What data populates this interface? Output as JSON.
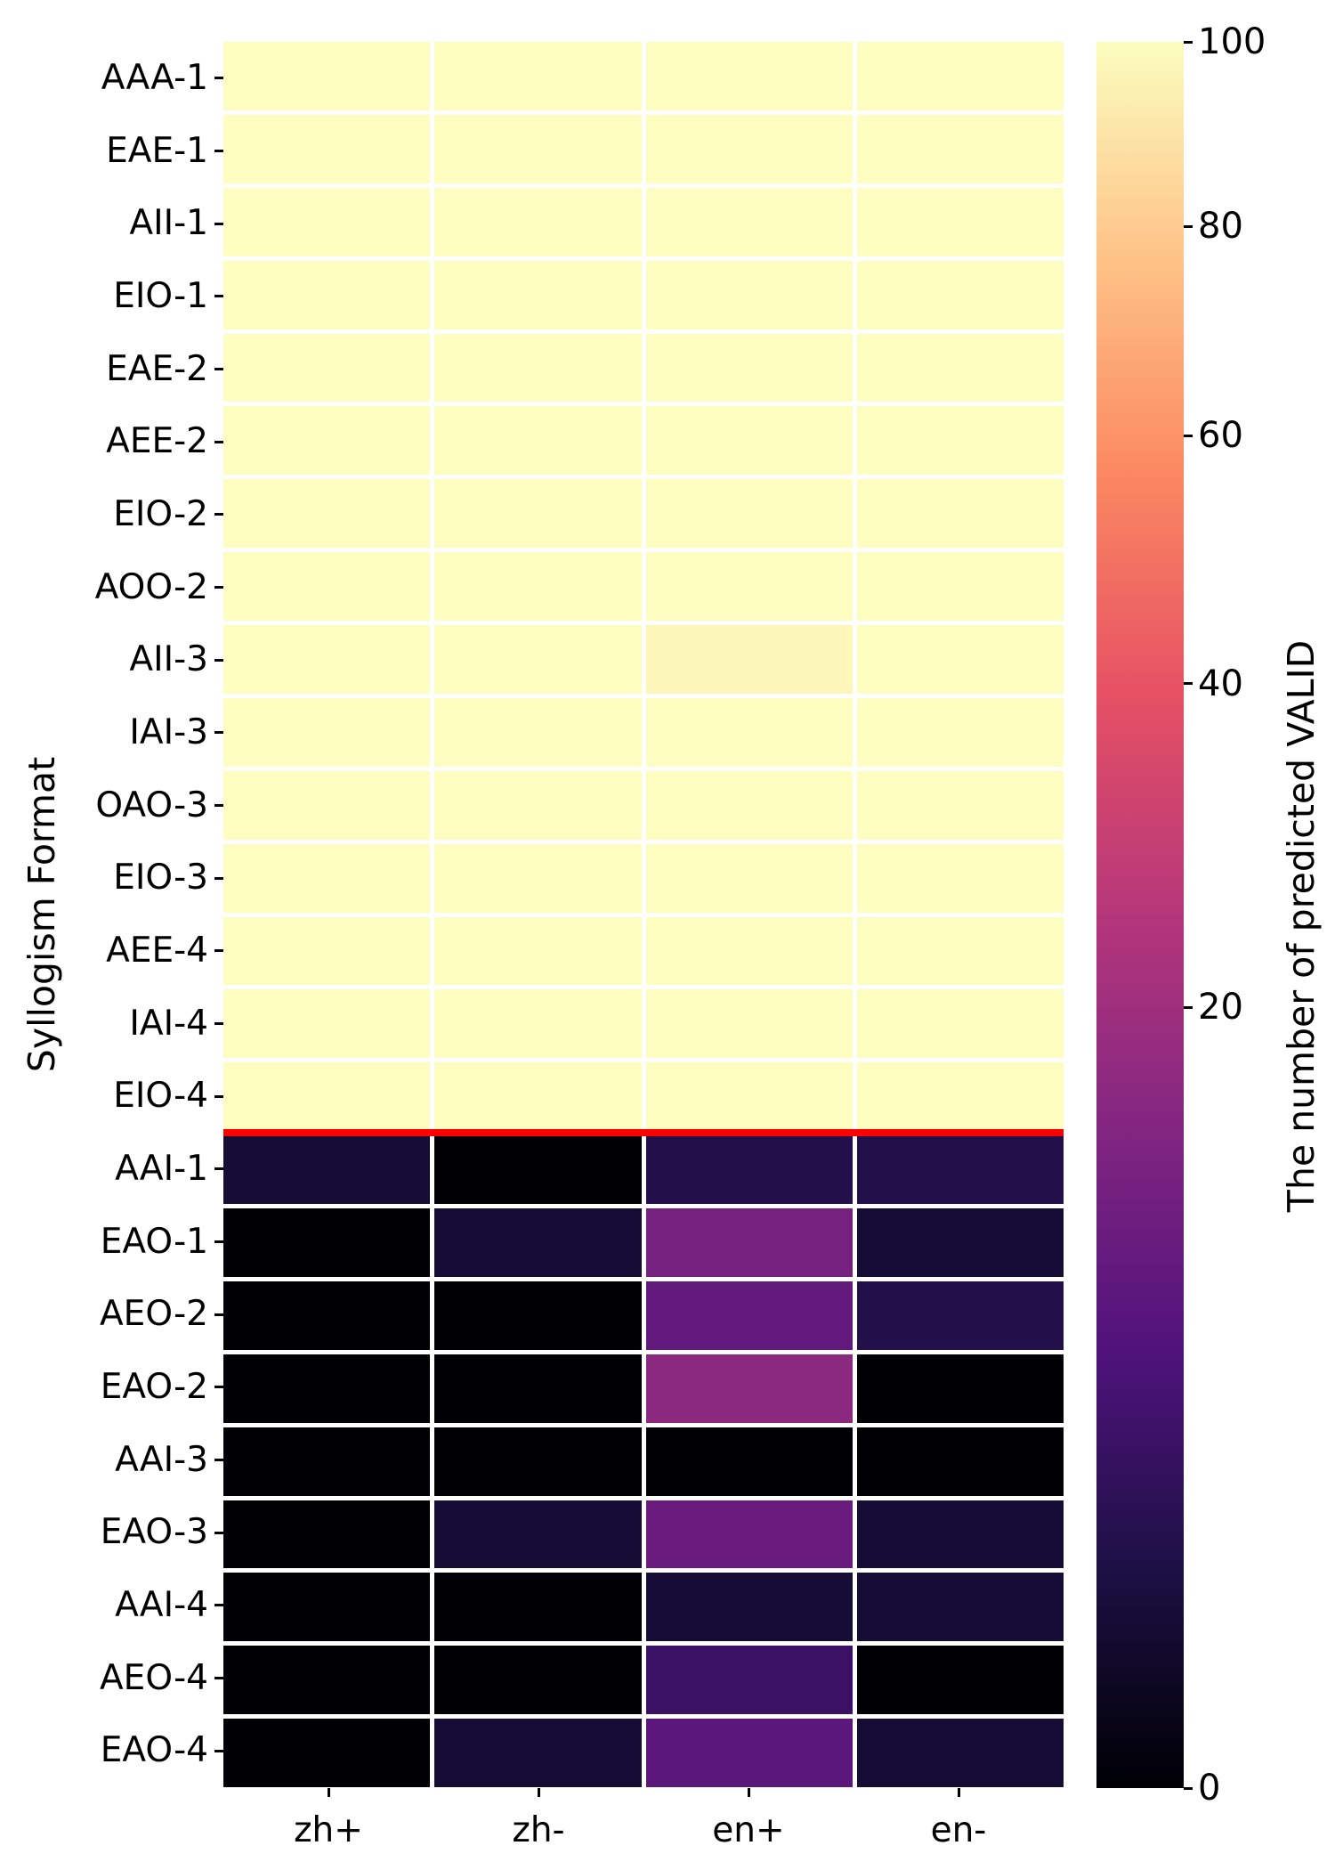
{
  "chart_data": {
    "type": "heatmap",
    "title": "",
    "xlabel": "",
    "ylabel": "Syllogism Format",
    "x_categories": [
      "zh+",
      "zh-",
      "en+",
      "en-"
    ],
    "y_categories": [
      "AAA-1",
      "EAE-1",
      "AII-1",
      "EIO-1",
      "EAE-2",
      "AEE-2",
      "EIO-2",
      "AOO-2",
      "AII-3",
      "IAI-3",
      "OAO-3",
      "EIO-3",
      "AEE-4",
      "IAI-4",
      "EIO-4",
      "AAI-1",
      "EAO-1",
      "AEO-2",
      "EAO-2",
      "AAI-3",
      "EAO-3",
      "AAI-4",
      "AEO-4",
      "EAO-4"
    ],
    "values": [
      [
        100,
        100,
        100,
        100
      ],
      [
        100,
        100,
        100,
        100
      ],
      [
        100,
        100,
        100,
        100
      ],
      [
        100,
        100,
        100,
        100
      ],
      [
        100,
        100,
        100,
        100
      ],
      [
        100,
        100,
        100,
        100
      ],
      [
        100,
        100,
        100,
        100
      ],
      [
        100,
        100,
        100,
        100
      ],
      [
        100,
        100,
        97,
        100
      ],
      [
        100,
        100,
        100,
        100
      ],
      [
        100,
        100,
        100,
        100
      ],
      [
        100,
        100,
        100,
        100
      ],
      [
        100,
        100,
        100,
        100
      ],
      [
        100,
        100,
        100,
        100
      ],
      [
        100,
        100,
        100,
        100
      ],
      [
        1,
        0,
        2,
        2
      ],
      [
        0,
        1,
        12,
        1
      ],
      [
        0,
        0,
        9,
        2
      ],
      [
        0,
        0,
        16,
        0
      ],
      [
        0,
        0,
        0,
        0
      ],
      [
        0,
        1,
        10,
        1
      ],
      [
        0,
        0,
        1,
        1
      ],
      [
        0,
        0,
        4,
        0
      ],
      [
        0,
        1,
        8,
        1
      ]
    ],
    "vmin": 0,
    "vmax": 100,
    "colormap": "magma",
    "norm": "power",
    "norm_gamma": 0.5,
    "grid_on": true,
    "grid_color": "#ffffff",
    "colorbar_label": "The number of predicted VALID",
    "colorbar_ticks": [
      100,
      80,
      60,
      40,
      20,
      0
    ],
    "divider": {
      "after_row_label": "EIO-4",
      "after_row_index": 15,
      "color": "#ff0000",
      "meaning": "separates valid formats (top) from invalid formats (bottom)"
    }
  }
}
